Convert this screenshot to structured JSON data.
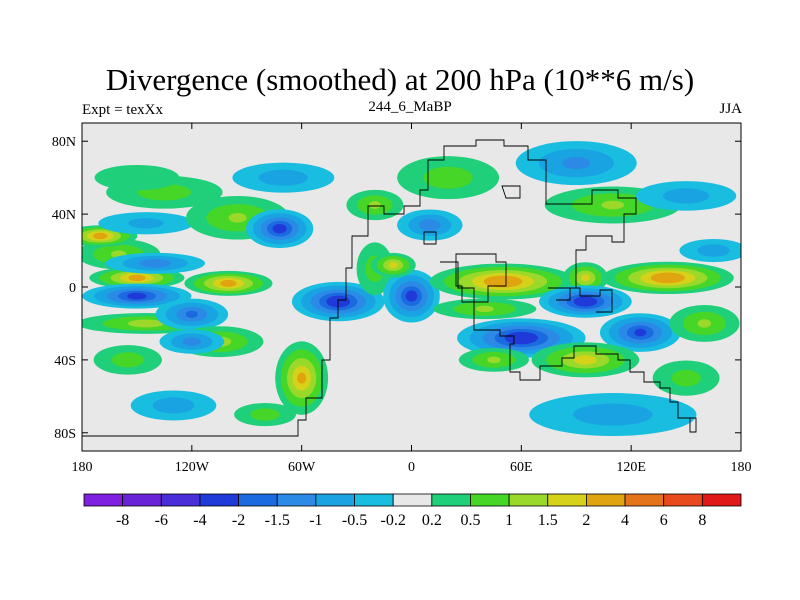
{
  "title": "Divergence (smoothed) at 200 hPa (10**6 m/s)",
  "subtitle_left": "Expt = texXx",
  "subtitle_center": "244_6_MaBP",
  "subtitle_right": "JJA",
  "chart_data": {
    "type": "heatmap",
    "title": "Divergence (smoothed) at 200 hPa (10**6 m/s)",
    "xlim": [
      -180,
      180
    ],
    "ylim": [
      -90,
      90
    ],
    "x_ticks": [
      {
        "value": -180,
        "label": "180"
      },
      {
        "value": -120,
        "label": "120W"
      },
      {
        "value": -60,
        "label": "60W"
      },
      {
        "value": 0,
        "label": "0"
      },
      {
        "value": 60,
        "label": "60E"
      },
      {
        "value": 120,
        "label": "120E"
      },
      {
        "value": 180,
        "label": "180"
      }
    ],
    "y_ticks": [
      {
        "value": 80,
        "label": "80N"
      },
      {
        "value": 40,
        "label": "40N"
      },
      {
        "value": 0,
        "label": "0"
      },
      {
        "value": -40,
        "label": "40S"
      },
      {
        "value": -80,
        "label": "80S"
      }
    ],
    "colorbar": {
      "labels": [
        "-8",
        "-6",
        "-4",
        "-2",
        "-1.5",
        "-1",
        "-0.5",
        "-0.2",
        "0.2",
        "0.5",
        "1",
        "1.5",
        "2",
        "4",
        "6",
        "8"
      ],
      "colors": [
        "#7f1fe0",
        "#6a24d8",
        "#4a2fd8",
        "#1f3ad8",
        "#1c6ae0",
        "#2a8ae6",
        "#1aa3e3",
        "#18bde0",
        "#e8e8e8",
        "#1fcf7a",
        "#46d628",
        "#9ad82a",
        "#d6d21a",
        "#dfa40f",
        "#e4741a",
        "#e84a1e",
        "#e01818"
      ]
    },
    "blobs": [
      {
        "lon": -150,
        "lat": 5,
        "rx": 26,
        "ry": 5,
        "v": 2.2
      },
      {
        "lon": -100,
        "lat": 2,
        "rx": 24,
        "ry": 6,
        "v": 2.2
      },
      {
        "lon": -160,
        "lat": 18,
        "rx": 24,
        "ry": 8,
        "v": 1.0
      },
      {
        "lon": -140,
        "lat": 13,
        "rx": 28,
        "ry": 5,
        "v": -1.4
      },
      {
        "lon": -170,
        "lat": 28,
        "rx": 20,
        "ry": 5,
        "v": 2.2
      },
      {
        "lon": -145,
        "lat": 35,
        "rx": 30,
        "ry": 6,
        "v": -0.6
      },
      {
        "lon": -95,
        "lat": 38,
        "rx": 30,
        "ry": 12,
        "v": 1.0
      },
      {
        "lon": -72,
        "lat": 32,
        "rx": 18,
        "ry": 10,
        "v": -2.3
      },
      {
        "lon": -135,
        "lat": 52,
        "rx": 35,
        "ry": 9,
        "v": 0.8
      },
      {
        "lon": -150,
        "lat": 60,
        "rx": 30,
        "ry": 8,
        "v": 0.4
      },
      {
        "lon": -70,
        "lat": 60,
        "rx": 30,
        "ry": 8,
        "v": -0.9
      },
      {
        "lon": 20,
        "lat": 60,
        "rx": 30,
        "ry": 12,
        "v": 0.9
      },
      {
        "lon": 90,
        "lat": 68,
        "rx": 35,
        "ry": 12,
        "v": -1.1
      },
      {
        "lon": 110,
        "lat": 45,
        "rx": 40,
        "ry": 10,
        "v": 1.0
      },
      {
        "lon": 150,
        "lat": 50,
        "rx": 30,
        "ry": 8,
        "v": -0.8
      },
      {
        "lon": -20,
        "lat": 45,
        "rx": 16,
        "ry": 8,
        "v": 1.0
      },
      {
        "lon": 10,
        "lat": 34,
        "rx": 18,
        "ry": 8,
        "v": -1.4
      },
      {
        "lon": -150,
        "lat": -5,
        "rx": 30,
        "ry": 6,
        "v": -2.2
      },
      {
        "lon": -145,
        "lat": -20,
        "rx": 40,
        "ry": 5,
        "v": 1.2
      },
      {
        "lon": -120,
        "lat": -15,
        "rx": 20,
        "ry": 8,
        "v": -1.5
      },
      {
        "lon": -105,
        "lat": -30,
        "rx": 25,
        "ry": 8,
        "v": 1.2
      },
      {
        "lon": -40,
        "lat": -8,
        "rx": 25,
        "ry": 10,
        "v": -3.0
      },
      {
        "lon": -20,
        "lat": 10,
        "rx": 10,
        "ry": 15,
        "v": 0.9
      },
      {
        "lon": 0,
        "lat": -5,
        "rx": 15,
        "ry": 14,
        "v": -2.2
      },
      {
        "lon": -10,
        "lat": 12,
        "rx": 12,
        "ry": 6,
        "v": 1.5
      },
      {
        "lon": 50,
        "lat": 3,
        "rx": 40,
        "ry": 9,
        "v": 3.5
      },
      {
        "lon": 140,
        "lat": 5,
        "rx": 36,
        "ry": 8,
        "v": 3.3
      },
      {
        "lon": 95,
        "lat": 5,
        "rx": 12,
        "ry": 8,
        "v": 1.5
      },
      {
        "lon": 95,
        "lat": -8,
        "rx": 25,
        "ry": 8,
        "v": -3.0
      },
      {
        "lon": 60,
        "lat": -28,
        "rx": 35,
        "ry": 10,
        "v": -3.3
      },
      {
        "lon": 125,
        "lat": -25,
        "rx": 22,
        "ry": 10,
        "v": -2.0
      },
      {
        "lon": 160,
        "lat": -20,
        "rx": 20,
        "ry": 10,
        "v": 1.0
      },
      {
        "lon": 40,
        "lat": -12,
        "rx": 30,
        "ry": 5,
        "v": 1.0
      },
      {
        "lon": 95,
        "lat": -40,
        "rx": 30,
        "ry": 9,
        "v": 1.7
      },
      {
        "lon": -155,
        "lat": -40,
        "rx": 20,
        "ry": 8,
        "v": 0.8
      },
      {
        "lon": -120,
        "lat": -30,
        "rx": 18,
        "ry": 6,
        "v": -1.2
      },
      {
        "lon": -60,
        "lat": -50,
        "rx": 14,
        "ry": 20,
        "v": 2.0
      },
      {
        "lon": -80,
        "lat": -70,
        "rx": 18,
        "ry": 6,
        "v": 0.8
      },
      {
        "lon": -130,
        "lat": -65,
        "rx": 25,
        "ry": 8,
        "v": -0.9
      },
      {
        "lon": 110,
        "lat": -70,
        "rx": 50,
        "ry": 12,
        "v": -0.9
      },
      {
        "lon": 150,
        "lat": -50,
        "rx": 20,
        "ry": 10,
        "v": 0.7
      },
      {
        "lon": 165,
        "lat": 20,
        "rx": 20,
        "ry": 6,
        "v": -0.8
      },
      {
        "lon": 45,
        "lat": -40,
        "rx": 20,
        "ry": 6,
        "v": 1.0
      }
    ]
  }
}
